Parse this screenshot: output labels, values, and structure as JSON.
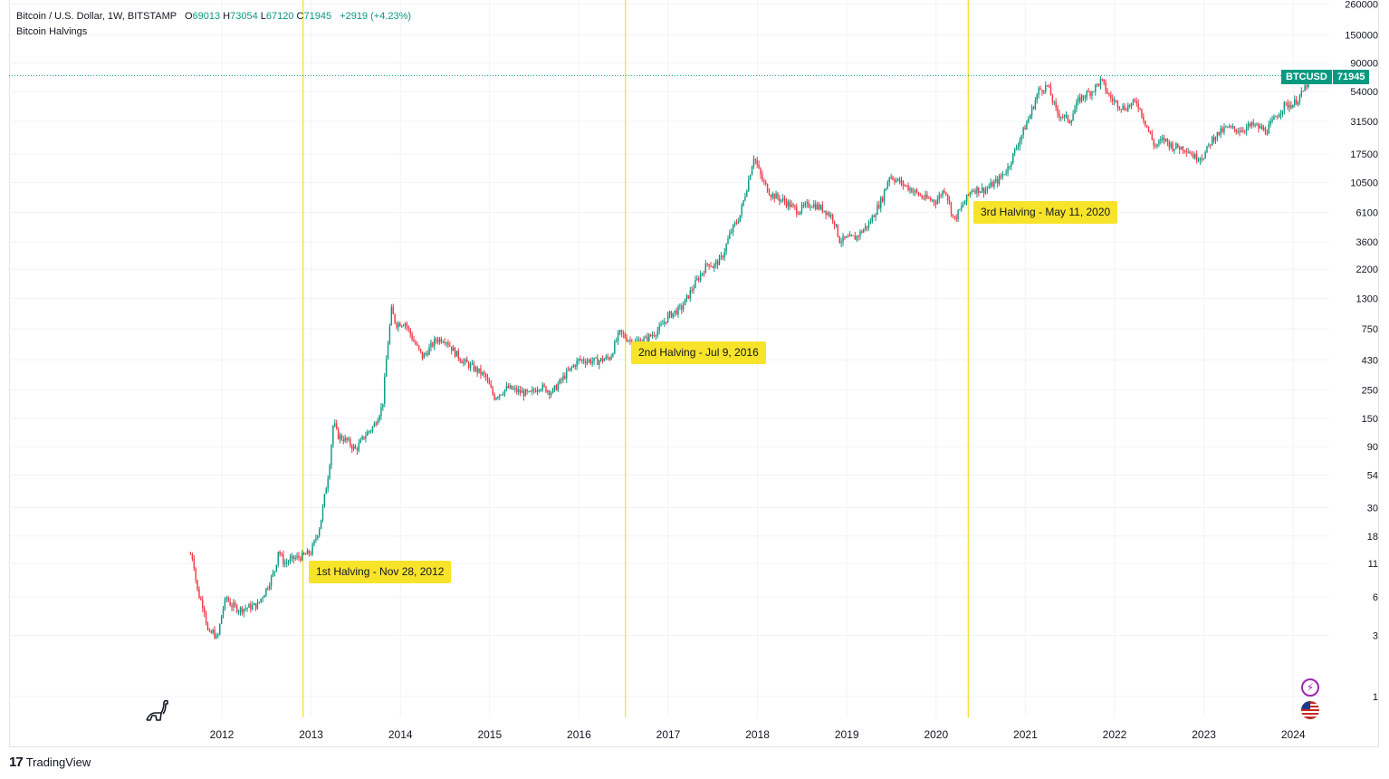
{
  "legend": {
    "symbol": "Bitcoin / U.S. Dollar, 1W, BITSTAMP",
    "open_label": "O",
    "open": "69013",
    "high_label": "H",
    "high": "73054",
    "low_label": "L",
    "low": "67120",
    "close_label": "C",
    "close": "71945",
    "change": "+2919 (+4.23%)",
    "indicator": "Bitcoin Halvings"
  },
  "price_tag": {
    "symbol": "BTCUSD",
    "price": "71945"
  },
  "halvings": [
    {
      "label": "1st Halving - Nov 28, 2012",
      "date": 2012.91
    },
    {
      "label": "2nd Halving - Jul 9, 2016",
      "date": 2016.52
    },
    {
      "label": "3rd Halving - May 11, 2020",
      "date": 2020.36
    }
  ],
  "branding": {
    "logo_text": "TradingView",
    "logo_mark": "17"
  },
  "colors": {
    "up": "#089981",
    "down": "#f23645",
    "halving": "#f7e32a",
    "grid": "#f0f3fa",
    "price_line": "#089981"
  },
  "icons": [
    "dinosaur-icon",
    "lightning-icon",
    "us-flag-icon"
  ],
  "chart_data": {
    "type": "candlestick",
    "title": "Bitcoin / U.S. Dollar, 1W, BITSTAMP",
    "xlabel": "",
    "ylabel": "",
    "y_scale": "log",
    "ylim": [
      0.72,
      262000
    ],
    "xlim": [
      2011.0,
      2024.35
    ],
    "grid": true,
    "x_ticks": [
      "2012",
      "2013",
      "2014",
      "2015",
      "2016",
      "2017",
      "2018",
      "2019",
      "2020",
      "2021",
      "2022",
      "2023",
      "2024"
    ],
    "y_ticks": [
      "1",
      "3",
      "6",
      "11",
      "18",
      "30",
      "54",
      "90",
      "150",
      "250",
      "430",
      "750",
      "1300",
      "2200",
      "3600",
      "6100",
      "10500",
      "17500",
      "31500",
      "54000",
      "90000",
      "150000",
      "260000"
    ],
    "series": [
      {
        "price_path": [
          [
            2011.65,
            13
          ],
          [
            2011.68,
            12
          ],
          [
            2011.72,
            7
          ],
          [
            2011.75,
            6
          ],
          [
            2011.8,
            5
          ],
          [
            2011.85,
            3
          ],
          [
            2011.9,
            3.2
          ],
          [
            2011.95,
            2.8
          ],
          [
            2012.0,
            4.5
          ],
          [
            2012.05,
            6
          ],
          [
            2012.1,
            5.2
          ],
          [
            2012.2,
            4.8
          ],
          [
            2012.3,
            5
          ],
          [
            2012.4,
            5.2
          ],
          [
            2012.5,
            7
          ],
          [
            2012.6,
            10
          ],
          [
            2012.63,
            14
          ],
          [
            2012.7,
            11
          ],
          [
            2012.8,
            12
          ],
          [
            2012.9,
            12.5
          ],
          [
            2013.0,
            13.5
          ],
          [
            2013.1,
            22
          ],
          [
            2013.2,
            60
          ],
          [
            2013.25,
            140
          ],
          [
            2013.3,
            110
          ],
          [
            2013.4,
            100
          ],
          [
            2013.5,
            85
          ],
          [
            2013.6,
            110
          ],
          [
            2013.7,
            130
          ],
          [
            2013.8,
            190
          ],
          [
            2013.85,
            500
          ],
          [
            2013.9,
            1050
          ],
          [
            2013.95,
            820
          ],
          [
            2014.05,
            850
          ],
          [
            2014.15,
            600
          ],
          [
            2014.25,
            450
          ],
          [
            2014.4,
            620
          ],
          [
            2014.5,
            630
          ],
          [
            2014.6,
            500
          ],
          [
            2014.7,
            420
          ],
          [
            2014.85,
            360
          ],
          [
            2014.95,
            320
          ],
          [
            2015.05,
            220
          ],
          [
            2015.2,
            260
          ],
          [
            2015.35,
            240
          ],
          [
            2015.45,
            230
          ],
          [
            2015.55,
            270
          ],
          [
            2015.7,
            240
          ],
          [
            2015.85,
            330
          ],
          [
            2016.0,
            430
          ],
          [
            2016.2,
            420
          ],
          [
            2016.35,
            450
          ],
          [
            2016.45,
            700
          ],
          [
            2016.52,
            650
          ],
          [
            2016.6,
            590
          ],
          [
            2016.75,
            620
          ],
          [
            2016.9,
            750
          ],
          [
            2017.0,
            950
          ],
          [
            2017.15,
            1100
          ],
          [
            2017.3,
            1700
          ],
          [
            2017.45,
            2500
          ],
          [
            2017.5,
            2300
          ],
          [
            2017.6,
            2700
          ],
          [
            2017.7,
            4300
          ],
          [
            2017.8,
            5700
          ],
          [
            2017.9,
            11000
          ],
          [
            2017.96,
            17000
          ],
          [
            2018.05,
            11000
          ],
          [
            2018.15,
            8500
          ],
          [
            2018.3,
            7500
          ],
          [
            2018.45,
            6300
          ],
          [
            2018.6,
            7200
          ],
          [
            2018.75,
            6400
          ],
          [
            2018.85,
            5500
          ],
          [
            2018.92,
            3700
          ],
          [
            2019.0,
            3800
          ],
          [
            2019.1,
            3900
          ],
          [
            2019.25,
            5000
          ],
          [
            2019.4,
            8000
          ],
          [
            2019.48,
            12000
          ],
          [
            2019.55,
            11000
          ],
          [
            2019.7,
            9500
          ],
          [
            2019.85,
            8000
          ],
          [
            2020.0,
            7500
          ],
          [
            2020.1,
            9500
          ],
          [
            2020.2,
            5300
          ],
          [
            2020.3,
            7000
          ],
          [
            2020.4,
            9300
          ],
          [
            2020.55,
            9200
          ],
          [
            2020.7,
            11000
          ],
          [
            2020.8,
            13500
          ],
          [
            2020.95,
            24000
          ],
          [
            2021.05,
            35000
          ],
          [
            2021.15,
            55000
          ],
          [
            2021.25,
            60000
          ],
          [
            2021.35,
            37000
          ],
          [
            2021.5,
            32000
          ],
          [
            2021.6,
            47000
          ],
          [
            2021.75,
            55000
          ],
          [
            2021.85,
            66000
          ],
          [
            2021.95,
            48000
          ],
          [
            2022.1,
            40000
          ],
          [
            2022.25,
            45000
          ],
          [
            2022.35,
            30000
          ],
          [
            2022.45,
            20000
          ],
          [
            2022.55,
            23000
          ],
          [
            2022.65,
            20000
          ],
          [
            2022.8,
            19500
          ],
          [
            2022.9,
            16500
          ],
          [
            2023.0,
            17000
          ],
          [
            2023.1,
            23500
          ],
          [
            2023.25,
            28000
          ],
          [
            2023.4,
            27000
          ],
          [
            2023.55,
            29500
          ],
          [
            2023.7,
            26500
          ],
          [
            2023.8,
            34000
          ],
          [
            2023.9,
            42000
          ],
          [
            2024.0,
            43000
          ],
          [
            2024.1,
            52000
          ],
          [
            2024.18,
            68000
          ],
          [
            2024.22,
            71945
          ]
        ]
      }
    ]
  }
}
